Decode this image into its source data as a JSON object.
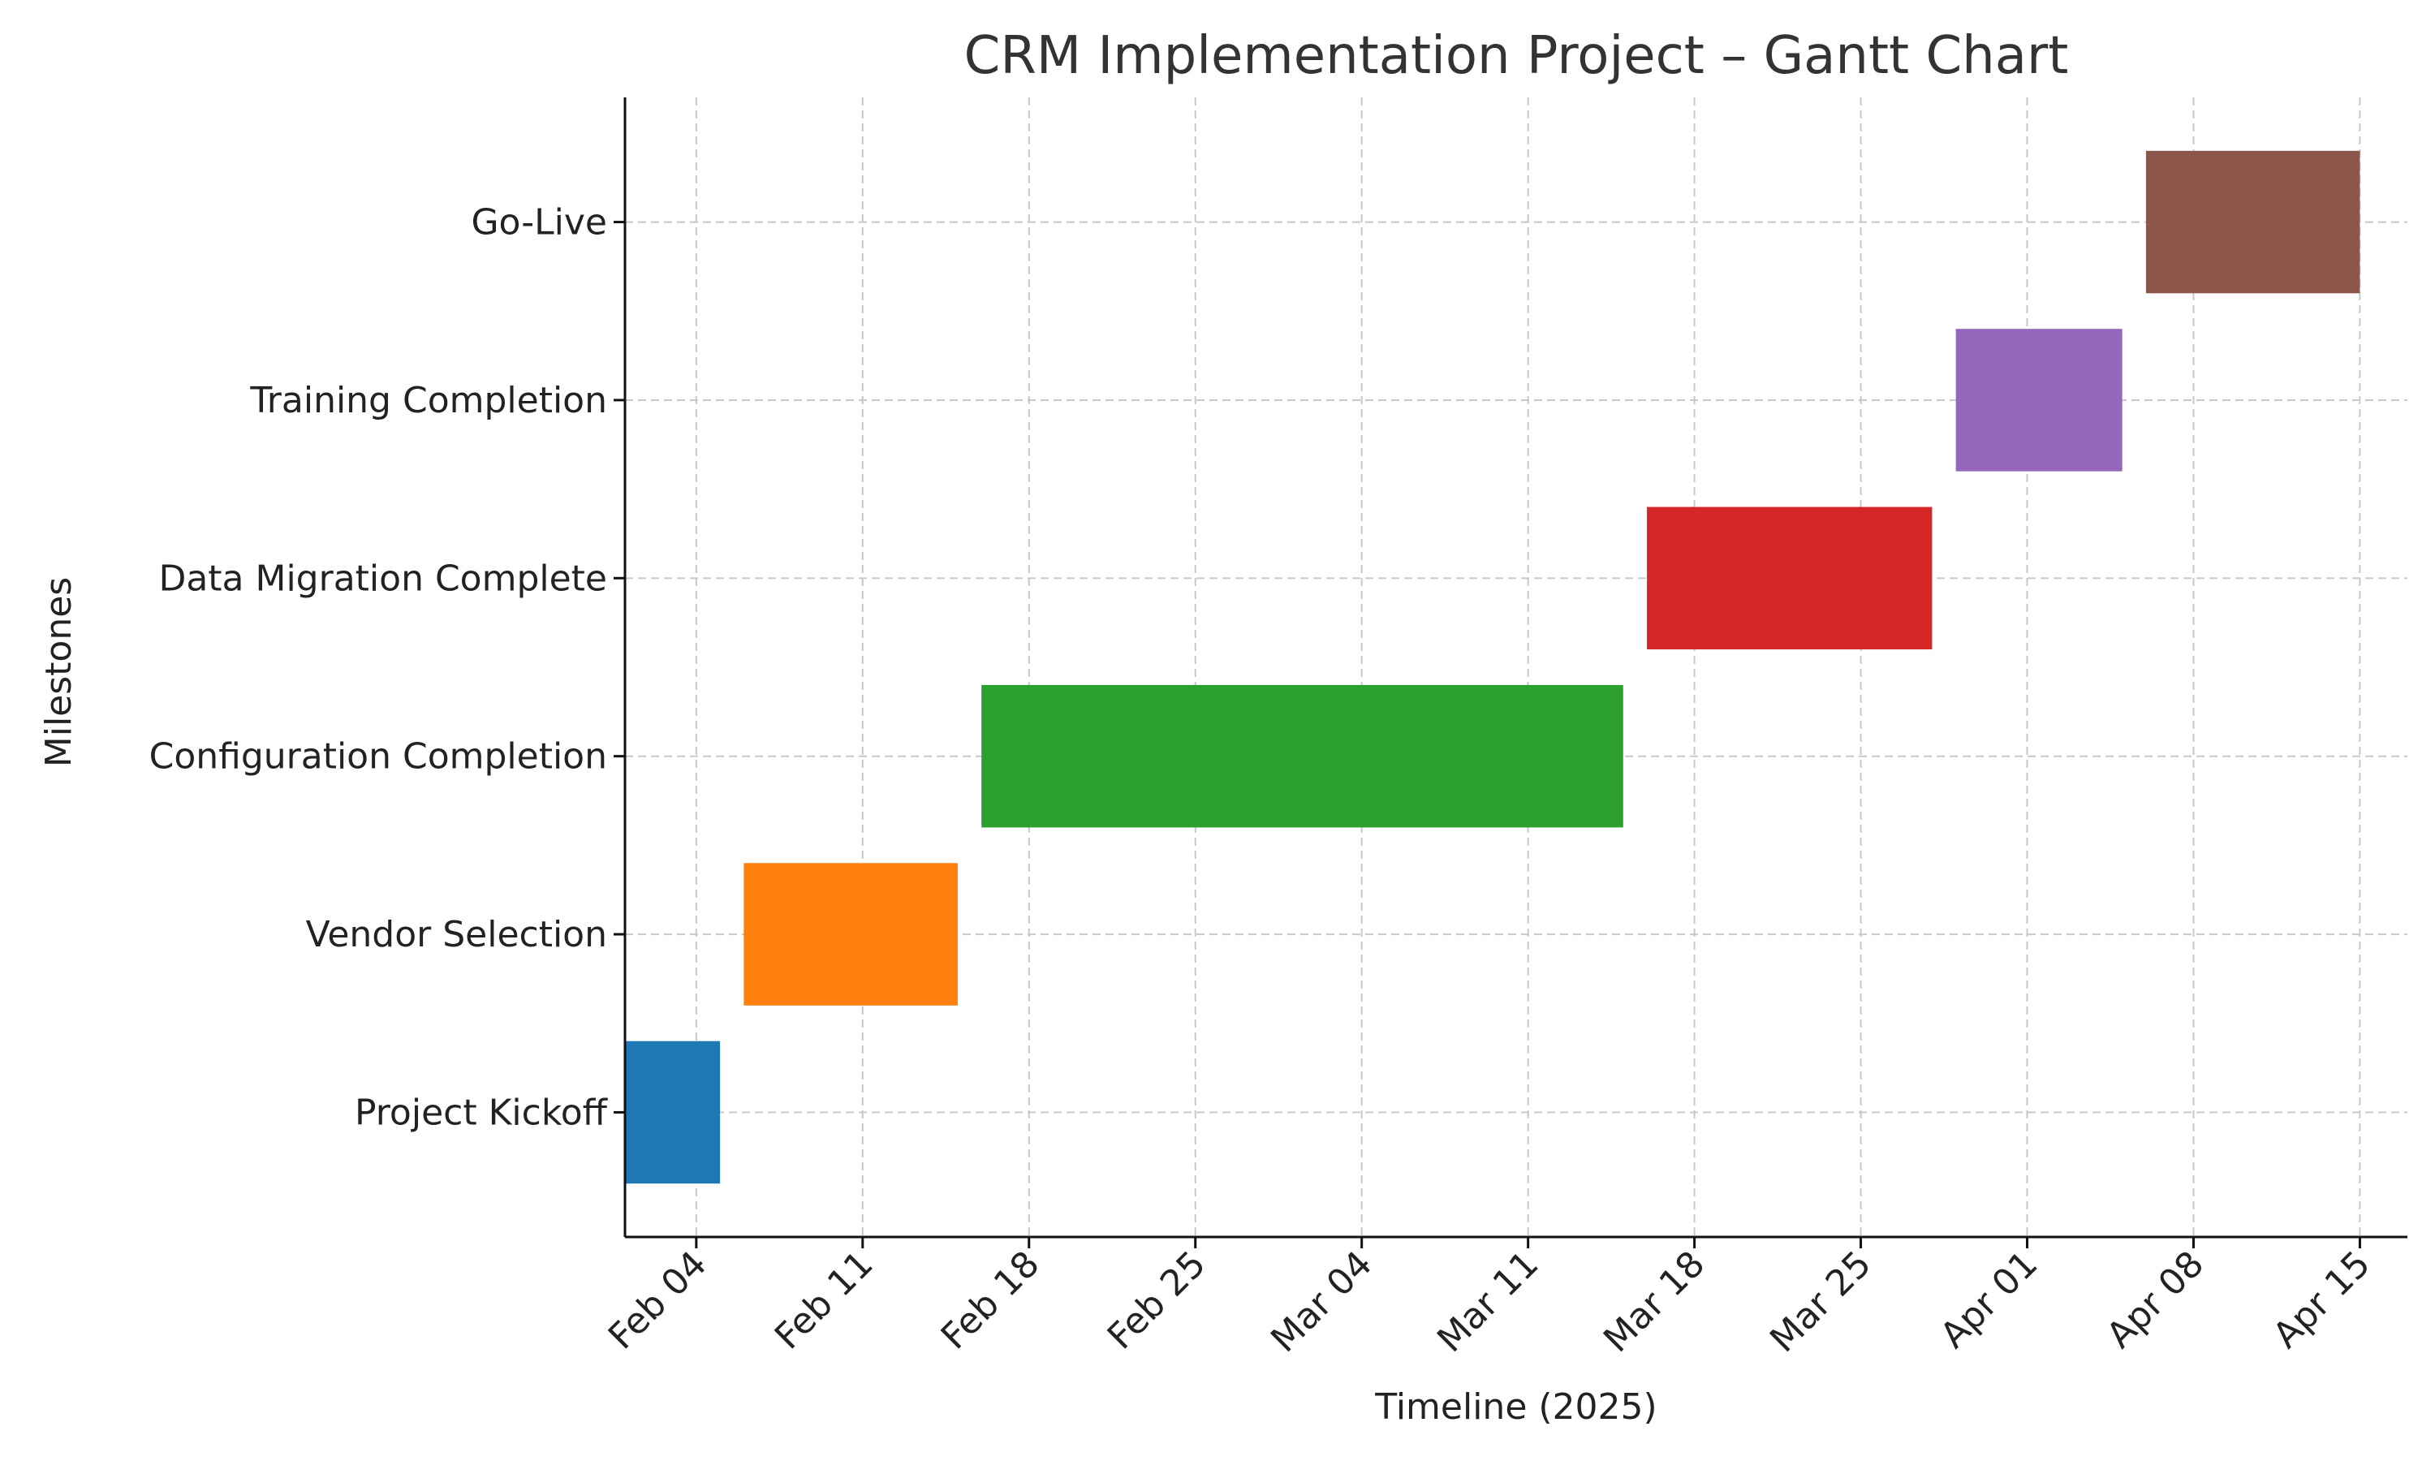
{
  "chart_data": {
    "type": "gantt",
    "title": "CRM Implementation Project – Gantt Chart",
    "xlabel": "Timeline (2025)",
    "ylabel": "Milestones",
    "x_axis_type": "date",
    "xlim": [
      "2025-02-01",
      "2025-04-17"
    ],
    "x_ticks": [
      {
        "date": "2025-02-04",
        "label": "Feb 04"
      },
      {
        "date": "2025-02-11",
        "label": "Feb 11"
      },
      {
        "date": "2025-02-18",
        "label": "Feb 18"
      },
      {
        "date": "2025-02-25",
        "label": "Feb 25"
      },
      {
        "date": "2025-03-04",
        "label": "Mar 04"
      },
      {
        "date": "2025-03-11",
        "label": "Mar 11"
      },
      {
        "date": "2025-03-18",
        "label": "Mar 18"
      },
      {
        "date": "2025-03-25",
        "label": "Mar 25"
      },
      {
        "date": "2025-04-01",
        "label": "Apr 01"
      },
      {
        "date": "2025-04-08",
        "label": "Apr 08"
      },
      {
        "date": "2025-04-15",
        "label": "Apr 15"
      }
    ],
    "grid": true,
    "tasks": [
      {
        "name": "Project Kickoff",
        "start": "2025-02-01",
        "end": "2025-02-05",
        "color": "#1f77b4"
      },
      {
        "name": "Vendor Selection",
        "start": "2025-02-06",
        "end": "2025-02-15",
        "color": "#ff7f0e"
      },
      {
        "name": "Configuration Completion",
        "start": "2025-02-16",
        "end": "2025-03-15",
        "color": "#2ca02c"
      },
      {
        "name": "Data Migration Complete",
        "start": "2025-03-16",
        "end": "2025-03-28",
        "color": "#d62728"
      },
      {
        "name": "Training Completion",
        "start": "2025-03-29",
        "end": "2025-04-05",
        "color": "#9467bd"
      },
      {
        "name": "Go-Live",
        "start": "2025-04-06",
        "end": "2025-04-15",
        "color": "#8c564b"
      }
    ]
  }
}
